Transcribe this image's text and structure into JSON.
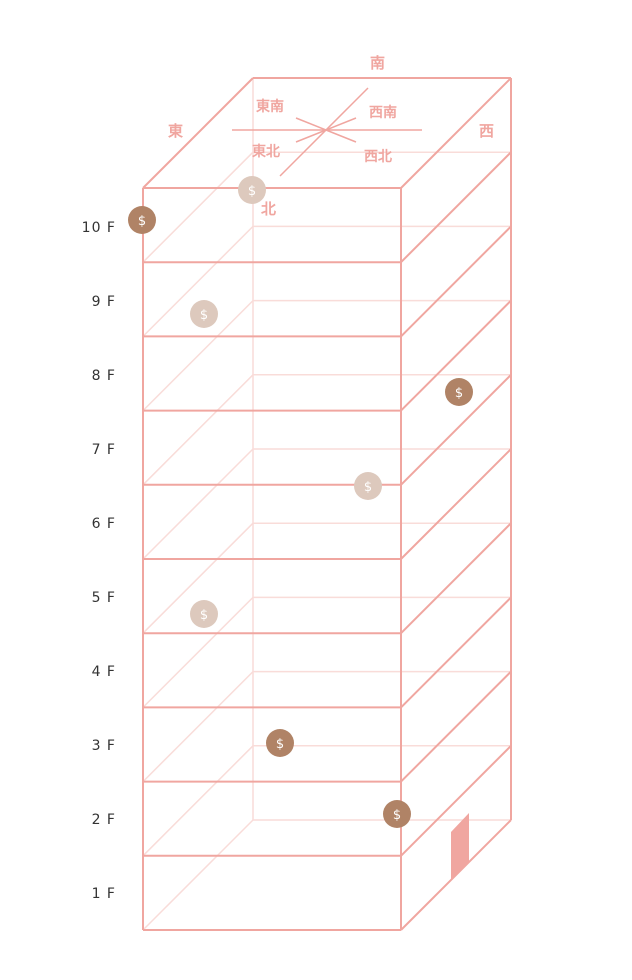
{
  "floors": [
    "1 F",
    "2 F",
    "3 F",
    "4 F",
    "5 F",
    "6 F",
    "7 F",
    "8 F",
    "9 F",
    "10 F"
  ],
  "directions": {
    "south": "南",
    "east": "東",
    "west": "西",
    "north": "北",
    "southeast": "東南",
    "southwest": "西南",
    "northeast": "東北",
    "northwest": "西北"
  },
  "coin_symbol": "$",
  "colors": {
    "building_line": "#f0a6a0",
    "building_faint": "#f9dcd9",
    "coin_dark": "#b08366",
    "coin_light": "#ddc9bd",
    "door": "#f0a6a0"
  },
  "coins": [
    {
      "floor": 10,
      "tone": "dark"
    },
    {
      "floor": 10,
      "tone": "light"
    },
    {
      "floor": 9,
      "tone": "light"
    },
    {
      "floor": 8,
      "tone": "dark"
    },
    {
      "floor": 7,
      "tone": "light"
    },
    {
      "floor": 5,
      "tone": "light"
    },
    {
      "floor": 3,
      "tone": "dark"
    },
    {
      "floor": 2,
      "tone": "dark"
    }
  ]
}
